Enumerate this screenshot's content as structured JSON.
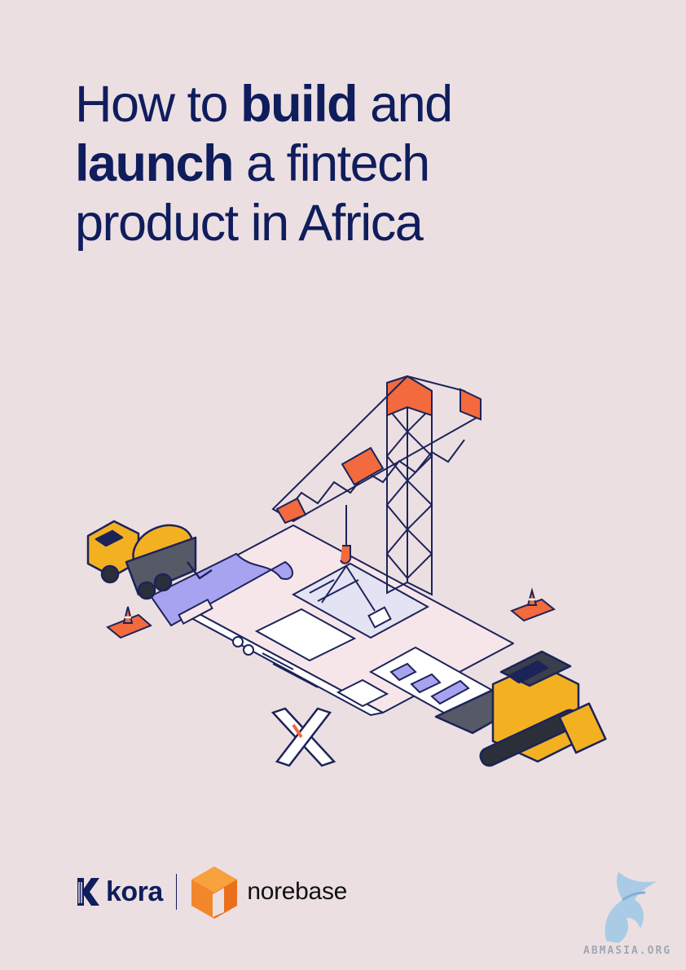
{
  "title": {
    "line1_prefix": "How to ",
    "line1_bold": "build",
    "line1_suffix": " and",
    "line2_bold": "launch",
    "line2_suffix": " a fintech",
    "line3": "product in Africa"
  },
  "logos": {
    "kora": "kora",
    "norebase": "norebase"
  },
  "watermark": {
    "text": "ABMASIA.ORG"
  },
  "colors": {
    "background": "#ecdfe2",
    "title": "#0f1d5c",
    "accent_orange": "#f26a3d",
    "accent_yellow": "#f3b122",
    "accent_purple": "#a7a3f0",
    "ink": "#1c2359"
  },
  "icons": [
    "kora-logo-icon",
    "norebase-logo-icon",
    "crane-icon",
    "cement-mixer-icon",
    "bulldozer-icon",
    "traffic-cone-icon",
    "barricade-icon",
    "crane-hook-icon",
    "watermark-griffin-icon"
  ]
}
